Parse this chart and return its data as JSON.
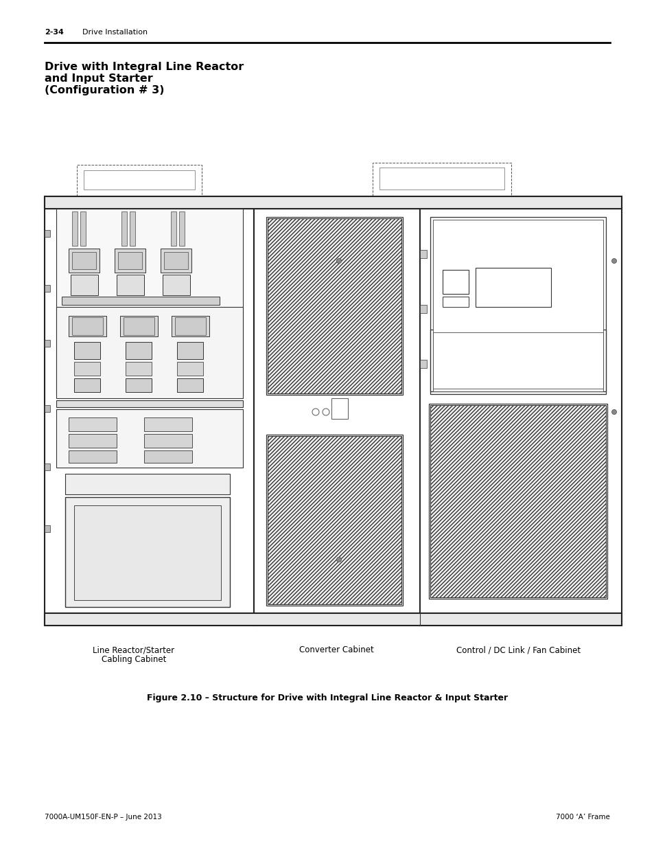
{
  "page_header_number": "2-34",
  "page_header_text": "Drive Installation",
  "title_line1": "Drive with Integral Line Reactor",
  "title_line2": "and Input Starter",
  "title_line3": "(Configuration # 3)",
  "footer_left": "7000A-UM150F-EN-P – June 2013",
  "footer_right": "7000 ‘A’ Frame",
  "caption": "Figure 2.10 – Structure for Drive with Integral Line Reactor & Input Starter",
  "label_left": "Line Reactor/Starter\nCabling Cabinet",
  "label_center": "Converter Cabinet",
  "label_right": "Control / DC Link / Fan Cabinet",
  "bg_color": "#ffffff",
  "text_color": "#000000"
}
